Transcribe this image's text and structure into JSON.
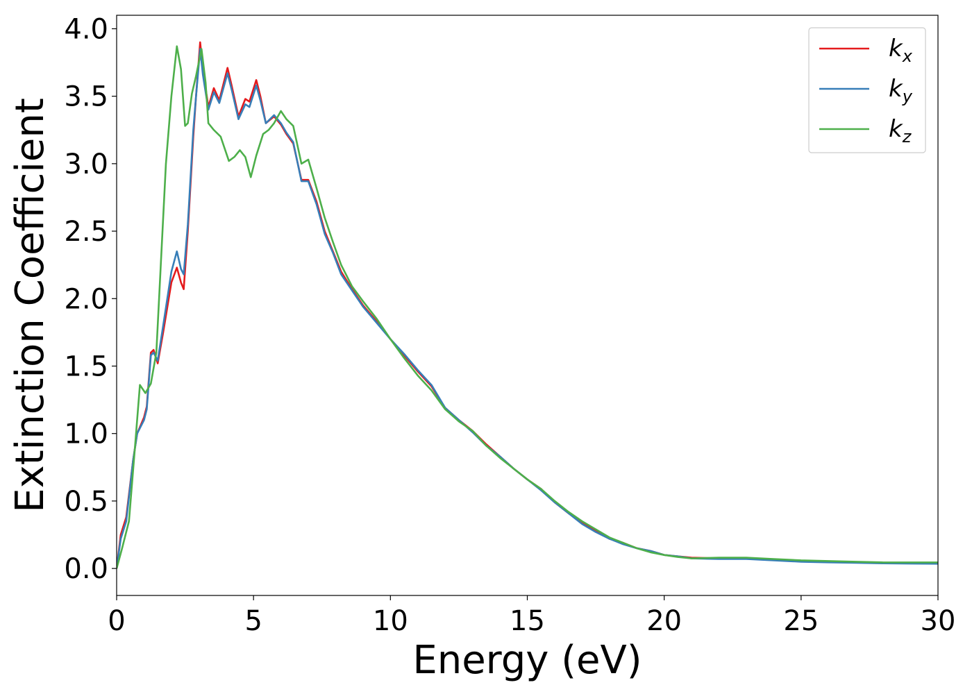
{
  "chart_data": {
    "type": "line",
    "title": "",
    "xlabel": "Energy (eV)",
    "ylabel": "Extinction Coefficient",
    "xlim": [
      0,
      30
    ],
    "ylim": [
      -0.2,
      4.1
    ],
    "xticks": [
      0,
      5,
      10,
      15,
      20,
      25,
      30
    ],
    "xtick_labels": [
      "0",
      "5",
      "10",
      "15",
      "20",
      "25",
      "30"
    ],
    "yticks": [
      0.0,
      0.5,
      1.0,
      1.5,
      2.0,
      2.5,
      3.0,
      3.5,
      4.0
    ],
    "ytick_labels": [
      "0.0",
      "0.5",
      "1.0",
      "1.5",
      "2.0",
      "2.5",
      "3.0",
      "3.5",
      "4.0"
    ],
    "grid": false,
    "legend_position": "top-right",
    "series": [
      {
        "name": "k",
        "subscript": "x",
        "color": "#e41a1c",
        "points": [
          [
            0,
            0.0
          ],
          [
            0.15,
            0.25
          ],
          [
            0.35,
            0.38
          ],
          [
            0.6,
            0.8
          ],
          [
            0.75,
            1.0
          ],
          [
            1.0,
            1.12
          ],
          [
            1.1,
            1.2
          ],
          [
            1.25,
            1.6
          ],
          [
            1.35,
            1.62
          ],
          [
            1.5,
            1.52
          ],
          [
            1.7,
            1.75
          ],
          [
            2.0,
            2.12
          ],
          [
            2.2,
            2.23
          ],
          [
            2.35,
            2.12
          ],
          [
            2.45,
            2.07
          ],
          [
            2.6,
            2.5
          ],
          [
            2.8,
            3.2
          ],
          [
            2.9,
            3.5
          ],
          [
            3.05,
            3.9
          ],
          [
            3.15,
            3.7
          ],
          [
            3.35,
            3.42
          ],
          [
            3.55,
            3.56
          ],
          [
            3.75,
            3.47
          ],
          [
            4.05,
            3.71
          ],
          [
            4.2,
            3.58
          ],
          [
            4.45,
            3.35
          ],
          [
            4.7,
            3.48
          ],
          [
            4.85,
            3.46
          ],
          [
            5.1,
            3.62
          ],
          [
            5.25,
            3.5
          ],
          [
            5.45,
            3.3
          ],
          [
            5.75,
            3.35
          ],
          [
            6.0,
            3.29
          ],
          [
            6.2,
            3.22
          ],
          [
            6.45,
            3.15
          ],
          [
            6.75,
            2.88
          ],
          [
            7.0,
            2.88
          ],
          [
            7.3,
            2.72
          ],
          [
            7.6,
            2.5
          ],
          [
            7.9,
            2.35
          ],
          [
            8.2,
            2.2
          ],
          [
            8.6,
            2.07
          ],
          [
            9.0,
            1.95
          ],
          [
            9.5,
            1.83
          ],
          [
            10.0,
            1.7
          ],
          [
            10.5,
            1.58
          ],
          [
            11.0,
            1.46
          ],
          [
            11.5,
            1.35
          ],
          [
            12.0,
            1.19
          ],
          [
            12.5,
            1.1
          ],
          [
            13.0,
            1.02
          ],
          [
            13.5,
            0.92
          ],
          [
            14.0,
            0.83
          ],
          [
            14.5,
            0.74
          ],
          [
            15.0,
            0.66
          ],
          [
            15.5,
            0.59
          ],
          [
            16.0,
            0.49
          ],
          [
            16.5,
            0.41
          ],
          [
            17.0,
            0.34
          ],
          [
            17.5,
            0.28
          ],
          [
            18.0,
            0.22
          ],
          [
            18.5,
            0.19
          ],
          [
            19.0,
            0.15
          ],
          [
            19.5,
            0.13
          ],
          [
            20.0,
            0.1
          ],
          [
            20.5,
            0.09
          ],
          [
            21.0,
            0.08
          ],
          [
            22.0,
            0.075
          ],
          [
            23.0,
            0.075
          ],
          [
            24.0,
            0.065
          ],
          [
            25.0,
            0.055
          ],
          [
            26.0,
            0.05
          ],
          [
            27.0,
            0.048
          ],
          [
            28.0,
            0.042
          ],
          [
            29.0,
            0.04
          ],
          [
            30.0,
            0.04
          ]
        ]
      },
      {
        "name": "k",
        "subscript": "y",
        "color": "#377eb8",
        "points": [
          [
            0,
            0.0
          ],
          [
            0.15,
            0.22
          ],
          [
            0.35,
            0.35
          ],
          [
            0.6,
            0.8
          ],
          [
            0.75,
            1.0
          ],
          [
            1.0,
            1.1
          ],
          [
            1.1,
            1.18
          ],
          [
            1.25,
            1.58
          ],
          [
            1.35,
            1.6
          ],
          [
            1.5,
            1.54
          ],
          [
            1.7,
            1.8
          ],
          [
            2.0,
            2.2
          ],
          [
            2.2,
            2.35
          ],
          [
            2.35,
            2.22
          ],
          [
            2.45,
            2.18
          ],
          [
            2.6,
            2.55
          ],
          [
            2.8,
            3.25
          ],
          [
            2.9,
            3.5
          ],
          [
            3.05,
            3.85
          ],
          [
            3.15,
            3.66
          ],
          [
            3.35,
            3.4
          ],
          [
            3.55,
            3.53
          ],
          [
            3.75,
            3.45
          ],
          [
            4.05,
            3.67
          ],
          [
            4.2,
            3.55
          ],
          [
            4.45,
            3.33
          ],
          [
            4.7,
            3.44
          ],
          [
            4.85,
            3.42
          ],
          [
            5.1,
            3.58
          ],
          [
            5.25,
            3.47
          ],
          [
            5.45,
            3.3
          ],
          [
            5.75,
            3.36
          ],
          [
            6.0,
            3.3
          ],
          [
            6.2,
            3.23
          ],
          [
            6.45,
            3.16
          ],
          [
            6.75,
            2.87
          ],
          [
            7.0,
            2.87
          ],
          [
            7.3,
            2.7
          ],
          [
            7.6,
            2.48
          ],
          [
            7.9,
            2.34
          ],
          [
            8.2,
            2.18
          ],
          [
            8.6,
            2.06
          ],
          [
            9.0,
            1.94
          ],
          [
            9.5,
            1.82
          ],
          [
            10.0,
            1.7
          ],
          [
            10.5,
            1.59
          ],
          [
            11.0,
            1.47
          ],
          [
            11.5,
            1.36
          ],
          [
            12.0,
            1.19
          ],
          [
            12.5,
            1.1
          ],
          [
            13.0,
            1.01
          ],
          [
            13.5,
            0.91
          ],
          [
            14.0,
            0.83
          ],
          [
            14.5,
            0.74
          ],
          [
            15.0,
            0.66
          ],
          [
            15.5,
            0.58
          ],
          [
            16.0,
            0.49
          ],
          [
            16.5,
            0.41
          ],
          [
            17.0,
            0.33
          ],
          [
            17.5,
            0.27
          ],
          [
            18.0,
            0.22
          ],
          [
            18.5,
            0.18
          ],
          [
            19.0,
            0.15
          ],
          [
            19.5,
            0.13
          ],
          [
            20.0,
            0.1
          ],
          [
            20.5,
            0.09
          ],
          [
            21.0,
            0.075
          ],
          [
            22.0,
            0.07
          ],
          [
            23.0,
            0.07
          ],
          [
            24.0,
            0.06
          ],
          [
            25.0,
            0.05
          ],
          [
            26.0,
            0.045
          ],
          [
            27.0,
            0.042
          ],
          [
            28.0,
            0.038
          ],
          [
            29.0,
            0.036
          ],
          [
            30.0,
            0.035
          ]
        ]
      },
      {
        "name": "k",
        "subscript": "z",
        "color": "#4daf4a",
        "points": [
          [
            0,
            0.0
          ],
          [
            0.2,
            0.15
          ],
          [
            0.45,
            0.35
          ],
          [
            0.65,
            0.85
          ],
          [
            0.85,
            1.36
          ],
          [
            1.05,
            1.3
          ],
          [
            1.25,
            1.37
          ],
          [
            1.45,
            1.6
          ],
          [
            1.6,
            2.2
          ],
          [
            1.8,
            3.0
          ],
          [
            2.0,
            3.5
          ],
          [
            2.2,
            3.87
          ],
          [
            2.35,
            3.7
          ],
          [
            2.5,
            3.28
          ],
          [
            2.6,
            3.3
          ],
          [
            2.75,
            3.52
          ],
          [
            2.9,
            3.65
          ],
          [
            3.1,
            3.85
          ],
          [
            3.25,
            3.6
          ],
          [
            3.35,
            3.3
          ],
          [
            3.55,
            3.25
          ],
          [
            3.8,
            3.2
          ],
          [
            4.1,
            3.02
          ],
          [
            4.3,
            3.05
          ],
          [
            4.5,
            3.1
          ],
          [
            4.7,
            3.05
          ],
          [
            4.9,
            2.9
          ],
          [
            5.1,
            3.06
          ],
          [
            5.35,
            3.22
          ],
          [
            5.55,
            3.25
          ],
          [
            5.75,
            3.3
          ],
          [
            6.0,
            3.39
          ],
          [
            6.2,
            3.33
          ],
          [
            6.45,
            3.28
          ],
          [
            6.75,
            3.0
          ],
          [
            7.0,
            3.03
          ],
          [
            7.3,
            2.82
          ],
          [
            7.6,
            2.6
          ],
          [
            7.9,
            2.42
          ],
          [
            8.2,
            2.25
          ],
          [
            8.6,
            2.09
          ],
          [
            9.0,
            1.98
          ],
          [
            9.5,
            1.85
          ],
          [
            10.0,
            1.7
          ],
          [
            10.5,
            1.56
          ],
          [
            11.0,
            1.43
          ],
          [
            11.5,
            1.32
          ],
          [
            12.0,
            1.18
          ],
          [
            12.5,
            1.09
          ],
          [
            13.0,
            1.02
          ],
          [
            13.5,
            0.91
          ],
          [
            14.0,
            0.82
          ],
          [
            14.5,
            0.74
          ],
          [
            15.0,
            0.66
          ],
          [
            15.5,
            0.59
          ],
          [
            16.0,
            0.5
          ],
          [
            16.5,
            0.42
          ],
          [
            17.0,
            0.35
          ],
          [
            17.5,
            0.29
          ],
          [
            18.0,
            0.23
          ],
          [
            18.5,
            0.19
          ],
          [
            19.0,
            0.15
          ],
          [
            19.5,
            0.12
          ],
          [
            20.0,
            0.1
          ],
          [
            20.5,
            0.085
          ],
          [
            21.0,
            0.075
          ],
          [
            22.0,
            0.08
          ],
          [
            23.0,
            0.08
          ],
          [
            24.0,
            0.07
          ],
          [
            25.0,
            0.06
          ],
          [
            26.0,
            0.055
          ],
          [
            27.0,
            0.05
          ],
          [
            28.0,
            0.045
          ],
          [
            29.0,
            0.045
          ],
          [
            30.0,
            0.045
          ]
        ]
      }
    ]
  }
}
